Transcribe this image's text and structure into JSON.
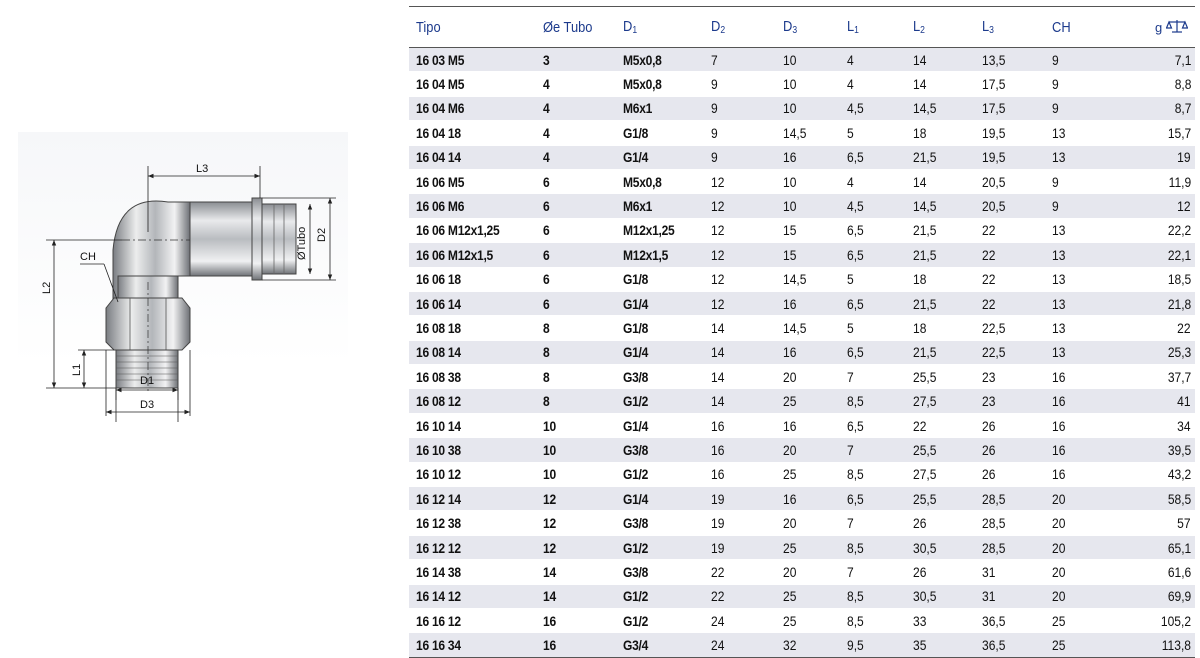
{
  "drawing": {
    "labels": {
      "l3": "L3",
      "l2": "L2",
      "l1": "L1",
      "ch": "CH",
      "d1": "D1",
      "d3": "D3",
      "d2": "D2",
      "otubo": "ØTubo"
    }
  },
  "table": {
    "headers": {
      "tipo": "Tipo",
      "tubo": "Øe Tubo",
      "d1": "D",
      "d1_sub": "1",
      "d2": "D",
      "d2_sub": "2",
      "d3": "D",
      "d3_sub": "3",
      "l1": "L",
      "l1_sub": "1",
      "l2": "L",
      "l2_sub": "2",
      "l3": "L",
      "l3_sub": "3",
      "ch": "CH",
      "g": "g",
      "weight_icon": "scale-icon"
    },
    "rows": [
      {
        "tipo": "16 03 M5",
        "tubo": "3",
        "d1": "M5x0,8",
        "d2": "7",
        "d3": "10",
        "l1": "4",
        "l2": "14",
        "l3": "13,5",
        "ch": "9",
        "g": "7,1"
      },
      {
        "tipo": "16 04 M5",
        "tubo": "4",
        "d1": "M5x0,8",
        "d2": "9",
        "d3": "10",
        "l1": "4",
        "l2": "14",
        "l3": "17,5",
        "ch": "9",
        "g": "8,8"
      },
      {
        "tipo": "16 04 M6",
        "tubo": "4",
        "d1": "M6x1",
        "d2": "9",
        "d3": "10",
        "l1": "4,5",
        "l2": "14,5",
        "l3": "17,5",
        "ch": "9",
        "g": "8,7"
      },
      {
        "tipo": "16 04 18",
        "tubo": "4",
        "d1": "G1/8",
        "d2": "9",
        "d3": "14,5",
        "l1": "5",
        "l2": "18",
        "l3": "19,5",
        "ch": "13",
        "g": "15,7"
      },
      {
        "tipo": "16 04 14",
        "tubo": "4",
        "d1": "G1/4",
        "d2": "9",
        "d3": "16",
        "l1": "6,5",
        "l2": "21,5",
        "l3": "19,5",
        "ch": "13",
        "g": "19"
      },
      {
        "tipo": "16 06 M5",
        "tubo": "6",
        "d1": "M5x0,8",
        "d2": "12",
        "d3": "10",
        "l1": "4",
        "l2": "14",
        "l3": "20,5",
        "ch": "9",
        "g": "11,9"
      },
      {
        "tipo": "16 06 M6",
        "tubo": "6",
        "d1": "M6x1",
        "d2": "12",
        "d3": "10",
        "l1": "4,5",
        "l2": "14,5",
        "l3": "20,5",
        "ch": "9",
        "g": "12"
      },
      {
        "tipo": "16 06 M12x1,25",
        "tubo": "6",
        "d1": "M12x1,25",
        "d2": "12",
        "d3": "15",
        "l1": "6,5",
        "l2": "21,5",
        "l3": "22",
        "ch": "13",
        "g": "22,2"
      },
      {
        "tipo": "16 06 M12x1,5",
        "tubo": "6",
        "d1": "M12x1,5",
        "d2": "12",
        "d3": "15",
        "l1": "6,5",
        "l2": "21,5",
        "l3": "22",
        "ch": "13",
        "g": "22,1"
      },
      {
        "tipo": "16 06 18",
        "tubo": "6",
        "d1": "G1/8",
        "d2": "12",
        "d3": "14,5",
        "l1": "5",
        "l2": "18",
        "l3": "22",
        "ch": "13",
        "g": "18,5"
      },
      {
        "tipo": "16 06 14",
        "tubo": "6",
        "d1": "G1/4",
        "d2": "12",
        "d3": "16",
        "l1": "6,5",
        "l2": "21,5",
        "l3": "22",
        "ch": "13",
        "g": "21,8"
      },
      {
        "tipo": "16 08 18",
        "tubo": "8",
        "d1": "G1/8",
        "d2": "14",
        "d3": "14,5",
        "l1": "5",
        "l2": "18",
        "l3": "22,5",
        "ch": "13",
        "g": "22"
      },
      {
        "tipo": "16 08 14",
        "tubo": "8",
        "d1": "G1/4",
        "d2": "14",
        "d3": "16",
        "l1": "6,5",
        "l2": "21,5",
        "l3": "22,5",
        "ch": "13",
        "g": "25,3"
      },
      {
        "tipo": "16 08 38",
        "tubo": "8",
        "d1": "G3/8",
        "d2": "14",
        "d3": "20",
        "l1": "7",
        "l2": "25,5",
        "l3": "23",
        "ch": "16",
        "g": "37,7"
      },
      {
        "tipo": "16 08 12",
        "tubo": "8",
        "d1": "G1/2",
        "d2": "14",
        "d3": "25",
        "l1": "8,5",
        "l2": "27,5",
        "l3": "23",
        "ch": "16",
        "g": "41"
      },
      {
        "tipo": "16 10 14",
        "tubo": "10",
        "d1": "G1/4",
        "d2": "16",
        "d3": "16",
        "l1": "6,5",
        "l2": "22",
        "l3": "26",
        "ch": "16",
        "g": "34"
      },
      {
        "tipo": "16 10 38",
        "tubo": "10",
        "d1": "G3/8",
        "d2": "16",
        "d3": "20",
        "l1": "7",
        "l2": "25,5",
        "l3": "26",
        "ch": "16",
        "g": "39,5"
      },
      {
        "tipo": "16 10 12",
        "tubo": "10",
        "d1": "G1/2",
        "d2": "16",
        "d3": "25",
        "l1": "8,5",
        "l2": "27,5",
        "l3": "26",
        "ch": "16",
        "g": "43,2"
      },
      {
        "tipo": "16 12 14",
        "tubo": "12",
        "d1": "G1/4",
        "d2": "19",
        "d3": "16",
        "l1": "6,5",
        "l2": "25,5",
        "l3": "28,5",
        "ch": "20",
        "g": "58,5"
      },
      {
        "tipo": "16 12 38",
        "tubo": "12",
        "d1": "G3/8",
        "d2": "19",
        "d3": "20",
        "l1": "7",
        "l2": "26",
        "l3": "28,5",
        "ch": "20",
        "g": "57"
      },
      {
        "tipo": "16 12 12",
        "tubo": "12",
        "d1": "G1/2",
        "d2": "19",
        "d3": "25",
        "l1": "8,5",
        "l2": "30,5",
        "l3": "28,5",
        "ch": "20",
        "g": "65,1"
      },
      {
        "tipo": "16 14 38",
        "tubo": "14",
        "d1": "G3/8",
        "d2": "22",
        "d3": "20",
        "l1": "7",
        "l2": "26",
        "l3": "31",
        "ch": "20",
        "g": "61,6"
      },
      {
        "tipo": "16 14 12",
        "tubo": "14",
        "d1": "G1/2",
        "d2": "22",
        "d3": "25",
        "l1": "8,5",
        "l2": "30,5",
        "l3": "31",
        "ch": "20",
        "g": "69,9"
      },
      {
        "tipo": "16 16 12",
        "tubo": "16",
        "d1": "G1/2",
        "d2": "24",
        "d3": "25",
        "l1": "8,5",
        "l2": "33",
        "l3": "36,5",
        "ch": "25",
        "g": "105,2"
      },
      {
        "tipo": "16 16 34",
        "tubo": "16",
        "d1": "G3/4",
        "d2": "24",
        "d3": "32",
        "l1": "9,5",
        "l2": "35",
        "l3": "36,5",
        "ch": "25",
        "g": "113,8"
      }
    ]
  }
}
